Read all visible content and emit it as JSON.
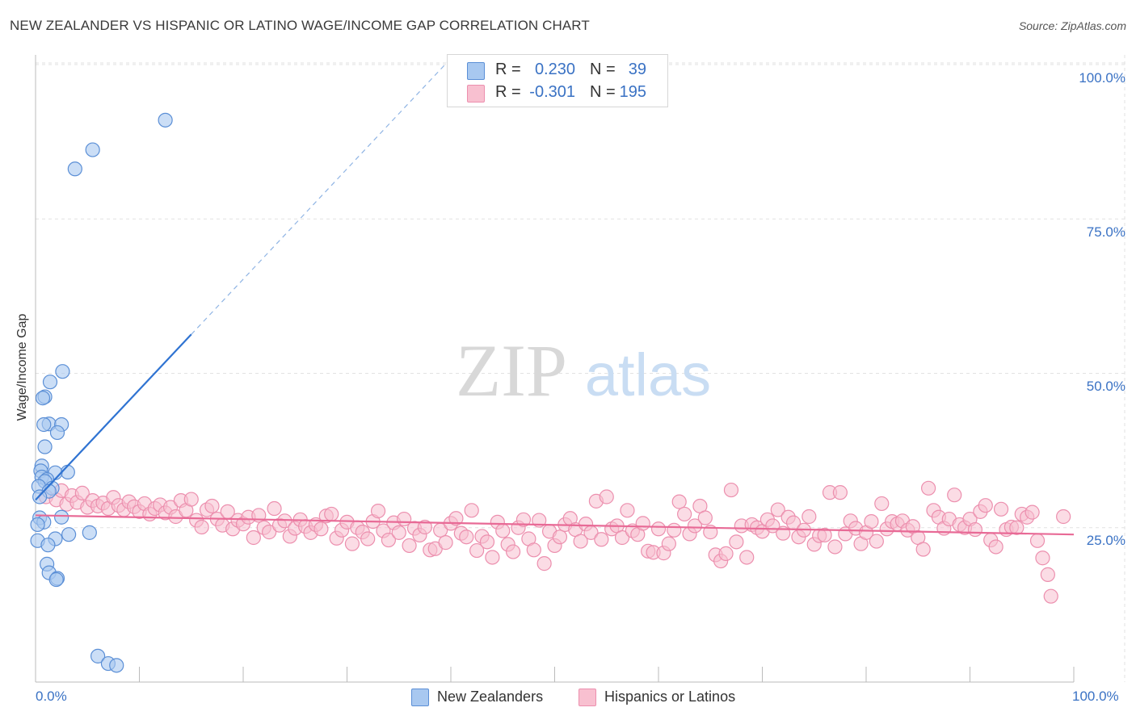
{
  "title": "NEW ZEALANDER VS HISPANIC OR LATINO WAGE/INCOME GAP CORRELATION CHART",
  "source": "Source: ZipAtlas.com",
  "watermark": {
    "zip": "ZIP",
    "atlas": "atlas"
  },
  "legend": {
    "rows": [
      {
        "r_label": "R =",
        "r_value": "0.230",
        "n_label": "N =",
        "n_value": "39",
        "color": "#a8c8f0"
      },
      {
        "r_label": "R =",
        "r_value": "-0.301",
        "n_label": "N =",
        "n_value": "195",
        "color": "#f8b8c8"
      }
    ]
  },
  "bottom_legend": [
    "New Zealanders",
    "Hispanics or Latinos"
  ],
  "axes": {
    "ylabel": "Wage/Income Gap",
    "x_ticks": [
      "0.0%",
      "100.0%"
    ],
    "y_ticks": [
      "100.0%",
      "75.0%",
      "50.0%",
      "25.0%"
    ]
  },
  "colors": {
    "blue_fill": "#a8c8f0",
    "blue_stroke": "#5b8fd6",
    "blue_line": "#2f73d2",
    "pink_fill": "#f8c0d0",
    "pink_stroke": "#ec8fae",
    "pink_line": "#e86a96",
    "tick_text": "#3a72c4",
    "grid": "#e2e2e2"
  },
  "chart_data": {
    "type": "scatter",
    "xlim": [
      0,
      100
    ],
    "ylim": [
      0,
      103
    ],
    "grid": true,
    "legend_position": "top-center",
    "series": [
      {
        "name": "New Zealanders",
        "trend": {
          "x": [
            0.0,
            15.0
          ],
          "y": [
            29.5,
            56.3
          ],
          "extension_to": [
            40.0,
            101.0
          ]
        },
        "points": [
          [
            12.5,
            91.0
          ],
          [
            5.5,
            86.2
          ],
          [
            3.8,
            83.1
          ],
          [
            2.6,
            50.3
          ],
          [
            1.4,
            48.6
          ],
          [
            0.9,
            46.2
          ],
          [
            0.7,
            46.0
          ],
          [
            1.3,
            41.8
          ],
          [
            2.5,
            41.7
          ],
          [
            0.8,
            41.7
          ],
          [
            2.1,
            40.4
          ],
          [
            0.9,
            38.1
          ],
          [
            0.6,
            35.0
          ],
          [
            0.5,
            34.2
          ],
          [
            3.1,
            34.0
          ],
          [
            1.9,
            33.9
          ],
          [
            0.6,
            33.2
          ],
          [
            1.1,
            32.8
          ],
          [
            0.9,
            32.5
          ],
          [
            0.3,
            31.7
          ],
          [
            1.6,
            31.4
          ],
          [
            1.3,
            30.9
          ],
          [
            0.4,
            30.0
          ],
          [
            2.5,
            26.7
          ],
          [
            0.4,
            26.6
          ],
          [
            0.8,
            25.9
          ],
          [
            0.2,
            25.5
          ],
          [
            5.2,
            24.2
          ],
          [
            3.2,
            23.9
          ],
          [
            1.9,
            23.2
          ],
          [
            0.2,
            22.9
          ],
          [
            1.2,
            22.2
          ],
          [
            1.1,
            19.1
          ],
          [
            1.3,
            17.7
          ],
          [
            2.1,
            16.8
          ],
          [
            2.0,
            16.6
          ],
          [
            6.0,
            4.2
          ],
          [
            7.0,
            3.0
          ],
          [
            7.8,
            2.7
          ]
        ]
      },
      {
        "name": "Hispanics or Latinos",
        "trend": {
          "x": [
            0.0,
            100.0
          ],
          "y": [
            27.0,
            23.9
          ]
        },
        "points": [
          [
            1,
            30
          ],
          [
            2,
            29.5
          ],
          [
            2.5,
            31
          ],
          [
            3,
            28.8
          ],
          [
            3.5,
            30.2
          ],
          [
            4,
            29.1
          ],
          [
            4.5,
            30.6
          ],
          [
            5,
            28.3
          ],
          [
            5.5,
            29.4
          ],
          [
            6,
            28.5
          ],
          [
            6.5,
            29.0
          ],
          [
            7,
            28.1
          ],
          [
            7.5,
            29.9
          ],
          [
            8,
            28.6
          ],
          [
            8.5,
            27.9
          ],
          [
            9,
            29.2
          ],
          [
            9.5,
            28.4
          ],
          [
            10,
            27.6
          ],
          [
            10.5,
            28.9
          ],
          [
            11,
            27.2
          ],
          [
            11.5,
            28.1
          ],
          [
            12,
            28.7
          ],
          [
            12.5,
            27.4
          ],
          [
            13,
            28.3
          ],
          [
            13.5,
            26.8
          ],
          [
            14,
            29.4
          ],
          [
            14.5,
            27.8
          ],
          [
            15,
            29.6
          ],
          [
            15.5,
            26.2
          ],
          [
            16,
            25.1
          ],
          [
            16.5,
            27.9
          ],
          [
            17,
            28.5
          ],
          [
            17.5,
            26.4
          ],
          [
            18,
            25.4
          ],
          [
            18.5,
            27.6
          ],
          [
            19,
            24.8
          ],
          [
            19.5,
            26.2
          ],
          [
            20,
            25.6
          ],
          [
            20.5,
            26.7
          ],
          [
            21,
            23.4
          ],
          [
            21.5,
            27.0
          ],
          [
            22,
            25.0
          ],
          [
            22.5,
            24.3
          ],
          [
            23,
            28.1
          ],
          [
            23.5,
            25.4
          ],
          [
            24,
            26.1
          ],
          [
            24.5,
            23.6
          ],
          [
            25,
            24.9
          ],
          [
            25.5,
            26.3
          ],
          [
            26,
            25.2
          ],
          [
            26.5,
            24.2
          ],
          [
            27,
            25.5
          ],
          [
            27.5,
            24.8
          ],
          [
            28,
            26.9
          ],
          [
            28.5,
            27.2
          ],
          [
            29,
            23.3
          ],
          [
            29.5,
            24.6
          ],
          [
            30,
            25.9
          ],
          [
            30.5,
            22.4
          ],
          [
            31,
            25.0
          ],
          [
            31.5,
            24.3
          ],
          [
            32,
            23.2
          ],
          [
            32.5,
            26.0
          ],
          [
            33,
            27.7
          ],
          [
            33.5,
            24.5
          ],
          [
            34,
            23.0
          ],
          [
            34.5,
            25.8
          ],
          [
            35,
            24.2
          ],
          [
            35.5,
            26.4
          ],
          [
            36,
            22.1
          ],
          [
            36.5,
            24.9
          ],
          [
            37,
            23.8
          ],
          [
            37.5,
            25.1
          ],
          [
            38,
            21.4
          ],
          [
            38.5,
            21.6
          ],
          [
            39,
            24.6
          ],
          [
            39.5,
            22.6
          ],
          [
            40,
            25.7
          ],
          [
            40.5,
            26.5
          ],
          [
            41,
            24.1
          ],
          [
            41.5,
            23.5
          ],
          [
            42,
            27.8
          ],
          [
            42.5,
            21.3
          ],
          [
            43,
            23.6
          ],
          [
            43.5,
            22.7
          ],
          [
            44,
            20.2
          ],
          [
            44.5,
            25.9
          ],
          [
            45,
            24.5
          ],
          [
            45.5,
            22.3
          ],
          [
            46,
            21.1
          ],
          [
            46.5,
            25.0
          ],
          [
            47,
            26.3
          ],
          [
            47.5,
            23.2
          ],
          [
            48,
            21.4
          ],
          [
            48.5,
            26.2
          ],
          [
            49,
            19.2
          ],
          [
            49.5,
            24.4
          ],
          [
            50,
            22.1
          ],
          [
            50.5,
            23.5
          ],
          [
            51,
            25.5
          ],
          [
            51.5,
            26.5
          ],
          [
            52,
            24.7
          ],
          [
            52.5,
            22.8
          ],
          [
            53,
            25.6
          ],
          [
            53.5,
            24.2
          ],
          [
            54,
            29.3
          ],
          [
            54.5,
            23.1
          ],
          [
            55,
            30.0
          ],
          [
            55.5,
            24.8
          ],
          [
            56,
            25.3
          ],
          [
            56.5,
            23.4
          ],
          [
            57,
            27.8
          ],
          [
            57.5,
            24.5
          ],
          [
            58,
            23.9
          ],
          [
            58.5,
            25.7
          ],
          [
            59,
            21.2
          ],
          [
            59.5,
            21.0
          ],
          [
            60,
            24.8
          ],
          [
            60.5,
            20.9
          ],
          [
            61,
            22.4
          ],
          [
            61.5,
            24.6
          ],
          [
            62,
            29.2
          ],
          [
            62.5,
            27.2
          ],
          [
            63,
            24.0
          ],
          [
            63.5,
            25.3
          ],
          [
            64,
            28.5
          ],
          [
            64.5,
            26.6
          ],
          [
            65,
            24.3
          ],
          [
            65.5,
            20.6
          ],
          [
            66,
            19.6
          ],
          [
            66.5,
            20.8
          ],
          [
            67,
            31.1
          ],
          [
            67.5,
            22.7
          ],
          [
            68,
            25.3
          ],
          [
            68.5,
            20.2
          ],
          [
            69,
            25.5
          ],
          [
            69.5,
            25.0
          ],
          [
            70,
            24.4
          ],
          [
            70.5,
            26.3
          ],
          [
            71,
            25.3
          ],
          [
            71.5,
            27.9
          ],
          [
            72,
            24.1
          ],
          [
            72.5,
            26.7
          ],
          [
            73,
            25.8
          ],
          [
            73.5,
            23.5
          ],
          [
            74,
            24.6
          ],
          [
            74.5,
            26.8
          ],
          [
            75,
            22.3
          ],
          [
            75.5,
            23.7
          ],
          [
            76,
            23.8
          ],
          [
            76.5,
            30.7
          ],
          [
            77,
            21.9
          ],
          [
            77.5,
            30.7
          ],
          [
            78,
            24.0
          ],
          [
            78.5,
            26.1
          ],
          [
            79,
            24.9
          ],
          [
            79.5,
            22.4
          ],
          [
            80,
            24.2
          ],
          [
            80.5,
            26.0
          ],
          [
            81,
            22.8
          ],
          [
            81.5,
            28.9
          ],
          [
            82,
            24.8
          ],
          [
            82.5,
            26.0
          ],
          [
            83,
            25.6
          ],
          [
            83.5,
            26.1
          ],
          [
            84,
            24.6
          ],
          [
            84.5,
            25.2
          ],
          [
            85,
            23.4
          ],
          [
            85.5,
            21.5
          ],
          [
            86,
            31.4
          ],
          [
            86.5,
            27.8
          ],
          [
            87,
            26.7
          ],
          [
            87.5,
            24.9
          ],
          [
            88,
            26.4
          ],
          [
            88.5,
            30.3
          ],
          [
            89,
            25.5
          ],
          [
            89.5,
            25.0
          ],
          [
            90,
            26.4
          ],
          [
            90.5,
            24.7
          ],
          [
            91,
            27.6
          ],
          [
            91.5,
            28.6
          ],
          [
            92,
            23.0
          ],
          [
            92.5,
            21.9
          ],
          [
            93,
            28.0
          ],
          [
            93.5,
            24.7
          ],
          [
            94,
            25.1
          ],
          [
            94.5,
            25.0
          ],
          [
            95,
            27.2
          ],
          [
            95.5,
            26.7
          ],
          [
            96,
            27.5
          ],
          [
            96.5,
            22.9
          ],
          [
            97,
            20.1
          ],
          [
            97.5,
            17.4
          ],
          [
            97.8,
            13.9
          ],
          [
            99.0,
            26.8
          ]
        ]
      }
    ]
  }
}
